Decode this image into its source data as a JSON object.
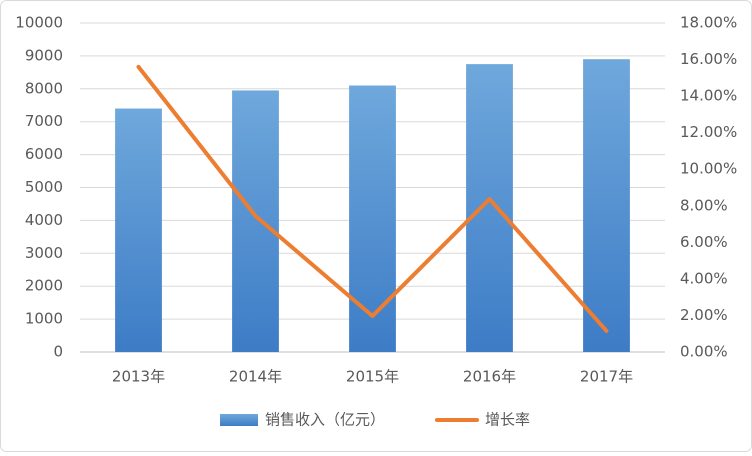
{
  "chart_data": {
    "type": "combo",
    "categories": [
      "2013年",
      "2014年",
      "2015年",
      "2016年",
      "2017年"
    ],
    "series": [
      {
        "name": "销售收入（亿元）",
        "type": "bar",
        "color": "#5b9bd5",
        "values": [
          7400,
          7950,
          8100,
          8750,
          8900
        ]
      },
      {
        "name": "增长率",
        "type": "line",
        "color": "#ed7d31",
        "axis": "y2",
        "values": [
          15.6,
          7.44,
          1.97,
          8.37,
          1.15
        ]
      }
    ],
    "ylim": [
      0,
      10000
    ],
    "yticks": [
      0,
      1000,
      2000,
      3000,
      4000,
      5000,
      6000,
      7000,
      8000,
      9000,
      10000
    ],
    "y2lim": [
      0,
      18
    ],
    "y2ticks": [
      {
        "value": 0,
        "label": "0.00%"
      },
      {
        "value": 2,
        "label": "2.00%"
      },
      {
        "value": 4,
        "label": "4.00%"
      },
      {
        "value": 6,
        "label": "6.00%"
      },
      {
        "value": 8,
        "label": "8.00%"
      },
      {
        "value": 10,
        "label": "10.00%"
      },
      {
        "value": 12,
        "label": "12.00%"
      },
      {
        "value": 14,
        "label": "14.00%"
      },
      {
        "value": 16,
        "label": "16.00%"
      },
      {
        "value": 18,
        "label": "18.00%"
      }
    ],
    "grid": true,
    "legend": "bottom"
  }
}
